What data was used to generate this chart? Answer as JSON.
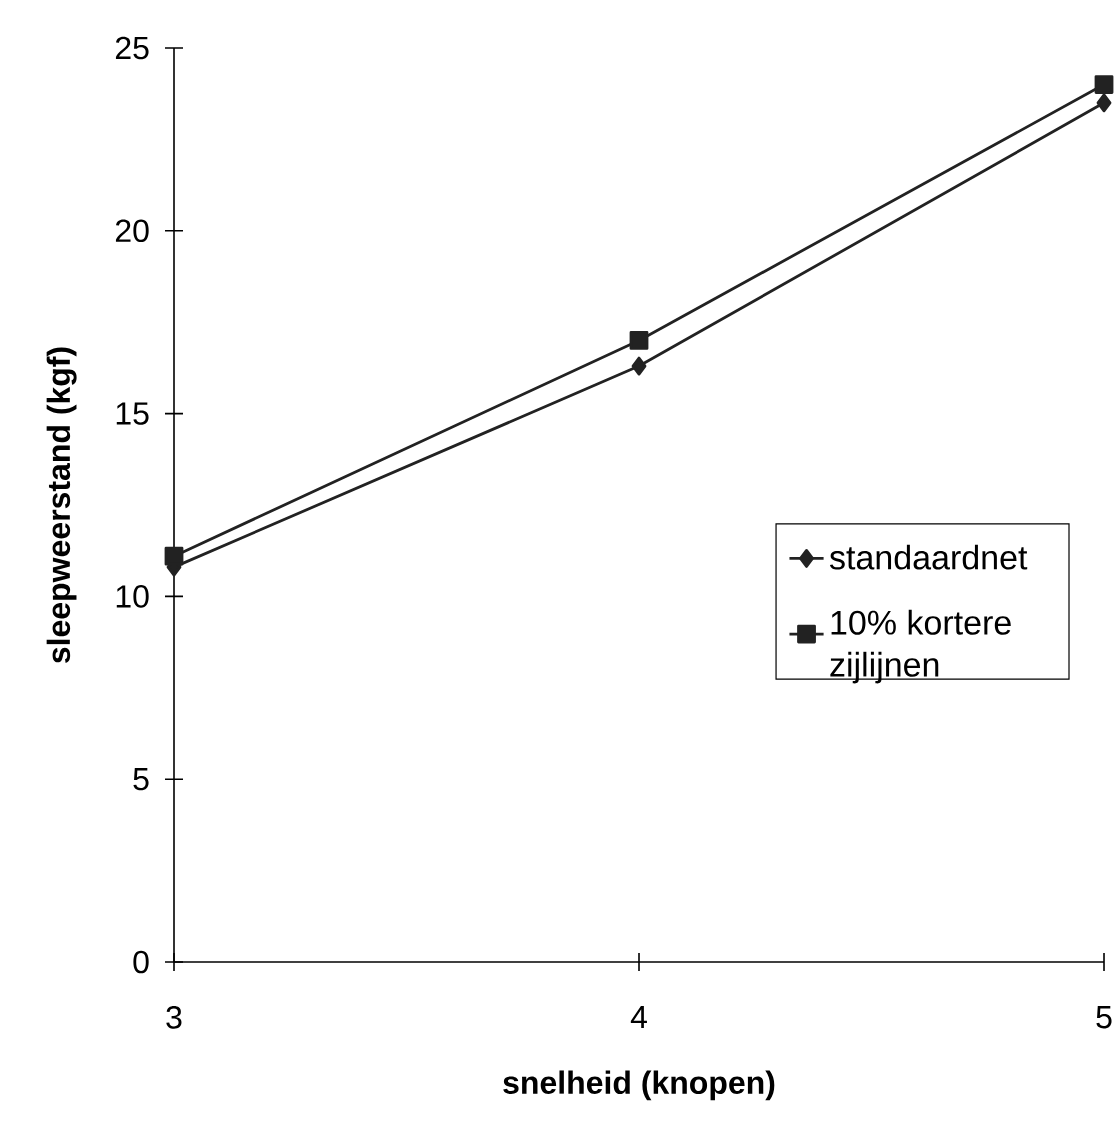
{
  "chart_data": {
    "type": "line",
    "xlabel": "snelheid (knopen)",
    "ylabel": "sleepweerstand (kgf)",
    "x": [
      3,
      4,
      5
    ],
    "series": [
      {
        "name": "standaardnet",
        "color": "#222222",
        "marker": "diamond",
        "values": [
          10.8,
          16.3,
          23.5
        ]
      },
      {
        "name": "10% kortere zijlijnen",
        "color": "#222222",
        "marker": "square",
        "values": [
          11.1,
          17.0,
          24.0
        ]
      }
    ],
    "xlim": [
      3,
      5
    ],
    "xticks": [
      3,
      4,
      5
    ],
    "ylim": [
      0,
      25
    ],
    "yticks": [
      0,
      5,
      10,
      15,
      20,
      25
    ],
    "grid": false,
    "legend": "right",
    "line_style": "solid"
  }
}
